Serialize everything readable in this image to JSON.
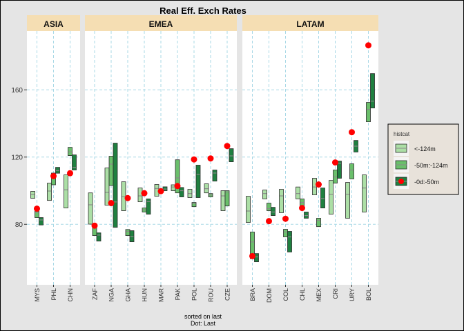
{
  "chart_data": {
    "type": "box-range",
    "title": "Real Eff. Exch Rates",
    "xlabel_lines": [
      "sorted on last",
      "Dot: Last"
    ],
    "ylabel": "",
    "ylim": [
      44,
      195
    ],
    "yticks": [
      80,
      120,
      160
    ],
    "grid": true,
    "legend": {
      "title": "histcat",
      "placement": "right",
      "entries": [
        "<-124m",
        "-50m:-124m",
        "-0d:-50m"
      ]
    },
    "colors": {
      "light": "#acdfa6",
      "medium": "#6abf6b",
      "dark": "#1f8040",
      "dot": "#ff0000",
      "strip": "#f5deb3",
      "grid": "#a8d8e6",
      "median": "#8a8a8a"
    },
    "panels": [
      {
        "name": "ASIA",
        "categories": [
          {
            "label": "MYS",
            "light": [
              95.5,
              99.6,
              97.8
            ],
            "medium": [
              84.0,
              87.8,
              87.0
            ],
            "dark": [
              79.6,
              84.0,
              82.6
            ],
            "last": 89.3
          },
          {
            "label": "PHL",
            "light": [
              94.2,
              104.5,
              99.8
            ],
            "medium": [
              103.5,
              110.5,
              107.4
            ],
            "dark": [
              110.4,
              113.9,
              112.0
            ],
            "last": 108.7
          },
          {
            "label": "CHN",
            "light": [
              89.7,
              109.4,
              100.5
            ],
            "medium": [
              120.9,
              125.8,
              123.1
            ],
            "dark": [
              112.3,
              121.3,
              113.9
            ],
            "last": 110.4
          }
        ]
      },
      {
        "name": "EMEA",
        "categories": [
          {
            "label": "ZAF",
            "light": [
              80.1,
              98.7,
              91.6
            ],
            "medium": [
              73.3,
              79.0,
              77.7
            ],
            "dark": [
              70.0,
              74.9,
              73.6
            ],
            "last": 79.2
          },
          {
            "label": "NGA",
            "light": [
              91.4,
              113.5,
              99.0
            ],
            "medium": [
              103.1,
              120.5,
              115.8
            ],
            "dark": [
              78.2,
              128.3,
              93.3
            ],
            "last": 92.6
          },
          {
            "label": "GHA",
            "light": [
              88.1,
              105.3,
              96.4
            ],
            "medium": [
              73.3,
              76.9,
              75.8
            ],
            "dark": [
              69.6,
              76.2,
              72.7
            ],
            "last": 95.6
          },
          {
            "label": "HUN",
            "light": [
              93.4,
              101.6,
              96.9
            ],
            "medium": [
              87.3,
              89.7,
              88.6
            ],
            "dark": [
              86.0,
              95.1,
              93.5
            ],
            "last": 98.5
          },
          {
            "label": "MAR",
            "light": [
              96.7,
              103.7,
              101.3
            ],
            "medium": [
              99.0,
              100.5,
              99.7
            ],
            "dark": [
              100.0,
              102.3,
              101.0
            ],
            "last": 99.7
          },
          {
            "label": "PAK",
            "light": [
              100.0,
              103.5,
              102.2
            ],
            "medium": [
              98.7,
              118.4,
              107.6
            ],
            "dark": [
              96.3,
              101.9,
              100.0
            ],
            "last": 102.8
          },
          {
            "label": "POL",
            "light": [
              95.9,
              100.8,
              98.3
            ],
            "medium": [
              90.5,
              93.0,
              92.3
            ],
            "dark": [
              95.9,
              115.2,
              109.8
            ],
            "last": 118.6
          },
          {
            "label": "ROU",
            "light": [
              98.7,
              104.1,
              101.2
            ],
            "medium": [
              96.3,
              98.3,
              97.4
            ],
            "dark": [
              105.7,
              112.3,
              110.5
            ],
            "last": 119.2
          },
          {
            "label": "CZE",
            "light": [
              88.1,
              100.0,
              96.9
            ],
            "medium": [
              90.9,
              100.0,
              99.2
            ],
            "dark": [
              117.2,
              125.0,
              120.7
            ],
            "last": 126.6
          }
        ]
      },
      {
        "name": "LATAM",
        "categories": [
          {
            "label": "BRA",
            "light": [
              81.1,
              96.7,
              87.9
            ],
            "medium": [
              59.5,
              75.4,
              69.5
            ],
            "dark": [
              57.7,
              62.6,
              60.6
            ],
            "last": 61.1
          },
          {
            "label": "DOM",
            "light": [
              95.1,
              100.4,
              98.3
            ],
            "medium": [
              88.1,
              92.6,
              89.3
            ],
            "dark": [
              85.2,
              90.1,
              87.3
            ],
            "last": 81.9
          },
          {
            "label": "COL",
            "light": [
              86.9,
              100.8,
              96.9
            ],
            "medium": [
              72.5,
              77.0,
              75.4
            ],
            "dark": [
              63.5,
              75.8,
              72.5
            ],
            "last": 83.3
          },
          {
            "label": "CHL",
            "light": [
              95.1,
              102.2,
              98.3
            ],
            "medium": [
              90.5,
              95.1,
              93.0
            ],
            "dark": [
              83.6,
              87.3,
              85.2
            ],
            "last": 89.7
          },
          {
            "label": "MEX",
            "light": [
              97.5,
              107.4,
              102.2
            ],
            "medium": [
              78.6,
              83.6,
              82.3
            ],
            "dark": [
              89.7,
              101.6,
              95.3
            ],
            "last": 103.7
          },
          {
            "label": "CRI",
            "light": [
              86.0,
              106.1,
              97.9
            ],
            "medium": [
              104.5,
              112.3,
              108.2
            ],
            "dark": [
              107.4,
              117.6,
              116.4
            ],
            "last": 116.8
          },
          {
            "label": "URY",
            "light": [
              83.6,
              104.9,
              97.9
            ],
            "medium": [
              107.0,
              116.0,
              112.3
            ],
            "dark": [
              123.0,
              129.9,
              126.5
            ],
            "last": 134.8
          },
          {
            "label": "BOL",
            "light": [
              87.3,
              109.4,
              101.6
            ],
            "medium": [
              141.0,
              152.5,
              148.4
            ],
            "dark": [
              149.2,
              169.7,
              153.3
            ],
            "last": 186.5
          }
        ]
      }
    ]
  }
}
